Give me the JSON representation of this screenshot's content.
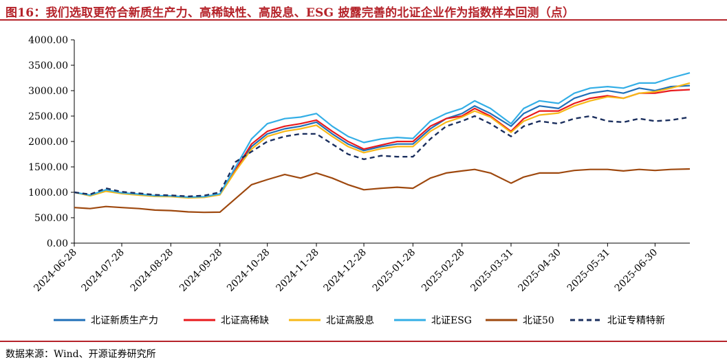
{
  "header": {
    "title": "图16：我们选取更符合新质生产力、高稀缺性、高股息、ESG 披露完善的北证企业作为指数样本回测（点）"
  },
  "footer": {
    "source": "数据来源：Wind、开源证券研究所"
  },
  "chart_data": {
    "type": "line",
    "title": "图16：我们选取更符合新质生产力、高稀缺性、高股息、ESG 披露完善的北证企业作为指数样本回测（点）",
    "xlabel": "",
    "ylabel": "",
    "x_ticks": [
      "2024-06-28",
      "2024-07-28",
      "2024-08-28",
      "2024-09-28",
      "2024-10-28",
      "2024-11-28",
      "2024-12-28",
      "2025-01-28",
      "2025-02-28",
      "2025-03-31",
      "2025-04-30",
      "2025-05-31",
      "2025-06-30"
    ],
    "y_ticks": [
      "0.00",
      "500.00",
      "1000.00",
      "1500.00",
      "2000.00",
      "2500.00",
      "3000.00",
      "3500.00",
      "4000.00"
    ],
    "ylim": [
      0,
      4000
    ],
    "xlim": [
      "2024-06-28",
      "2025-07-22"
    ],
    "grid": false,
    "legend_position": "bottom",
    "x": [
      "2024-06-28",
      "2024-07-08",
      "2024-07-18",
      "2024-07-28",
      "2024-08-08",
      "2024-08-18",
      "2024-08-28",
      "2024-09-08",
      "2024-09-18",
      "2024-09-28",
      "2024-10-08",
      "2024-10-18",
      "2024-10-28",
      "2024-11-08",
      "2024-11-18",
      "2024-11-28",
      "2024-12-08",
      "2024-12-18",
      "2024-12-28",
      "2025-01-08",
      "2025-01-18",
      "2025-01-28",
      "2025-02-08",
      "2025-02-18",
      "2025-02-28",
      "2025-03-08",
      "2025-03-18",
      "2025-03-31",
      "2025-04-08",
      "2025-04-18",
      "2025-04-30",
      "2025-05-10",
      "2025-05-20",
      "2025-05-31",
      "2025-06-10",
      "2025-06-20",
      "2025-06-30",
      "2025-07-10",
      "2025-07-22"
    ],
    "series": [
      {
        "name": "北证新质生产力",
        "color": "#1f6fb8",
        "dash": false,
        "values": [
          1000,
          940,
          1040,
          985,
          960,
          930,
          925,
          900,
          910,
          960,
          1450,
          1900,
          2150,
          2250,
          2300,
          2380,
          2150,
          1950,
          1820,
          1900,
          1950,
          1950,
          2250,
          2450,
          2550,
          2700,
          2550,
          2300,
          2550,
          2700,
          2650,
          2850,
          2950,
          3000,
          2950,
          3050,
          3000,
          3080,
          3100
        ]
      },
      {
        "name": "北证高稀缺",
        "color": "#e8191c",
        "dash": false,
        "values": [
          1000,
          935,
          1030,
          980,
          950,
          925,
          920,
          895,
          905,
          955,
          1450,
          1950,
          2200,
          2300,
          2350,
          2420,
          2200,
          2000,
          1850,
          1930,
          2000,
          2000,
          2300,
          2450,
          2500,
          2650,
          2500,
          2200,
          2450,
          2600,
          2600,
          2750,
          2850,
          2900,
          2850,
          2950,
          2950,
          3000,
          3020
        ]
      },
      {
        "name": "北证高股息",
        "color": "#f7b817",
        "dash": false,
        "values": [
          1000,
          930,
          1020,
          975,
          945,
          920,
          915,
          890,
          900,
          950,
          1420,
          1850,
          2100,
          2200,
          2250,
          2320,
          2100,
          1900,
          1780,
          1860,
          1900,
          1900,
          2200,
          2380,
          2480,
          2600,
          2480,
          2180,
          2400,
          2520,
          2560,
          2700,
          2800,
          2880,
          2850,
          2950,
          2980,
          3050,
          3150
        ]
      },
      {
        "name": "北证ESG",
        "color": "#33aee6",
        "dash": false,
        "values": [
          1000,
          945,
          1050,
          990,
          965,
          935,
          930,
          905,
          915,
          970,
          1500,
          2050,
          2350,
          2450,
          2480,
          2550,
          2300,
          2100,
          1980,
          2050,
          2080,
          2060,
          2400,
          2550,
          2650,
          2800,
          2650,
          2350,
          2650,
          2800,
          2750,
          2950,
          3050,
          3080,
          3050,
          3150,
          3150,
          3250,
          3350
        ]
      },
      {
        "name": "北证50",
        "color": "#9e480e",
        "dash": false,
        "values": [
          700,
          680,
          720,
          700,
          680,
          650,
          640,
          615,
          605,
          610,
          880,
          1150,
          1250,
          1350,
          1280,
          1380,
          1280,
          1150,
          1050,
          1080,
          1100,
          1080,
          1280,
          1380,
          1420,
          1450,
          1380,
          1180,
          1300,
          1380,
          1380,
          1430,
          1450,
          1450,
          1420,
          1450,
          1430,
          1450,
          1460
        ]
      },
      {
        "name": "北证专精特新",
        "color": "#1b2f5e",
        "dash": true,
        "values": [
          1000,
          960,
          1080,
          1010,
          980,
          950,
          940,
          920,
          935,
          1000,
          1600,
          1800,
          2000,
          2100,
          2150,
          2150,
          1950,
          1750,
          1650,
          1720,
          1700,
          1700,
          2050,
          2300,
          2400,
          2500,
          2350,
          2100,
          2300,
          2400,
          2350,
          2450,
          2500,
          2400,
          2380,
          2450,
          2400,
          2420,
          2480
        ]
      }
    ]
  }
}
